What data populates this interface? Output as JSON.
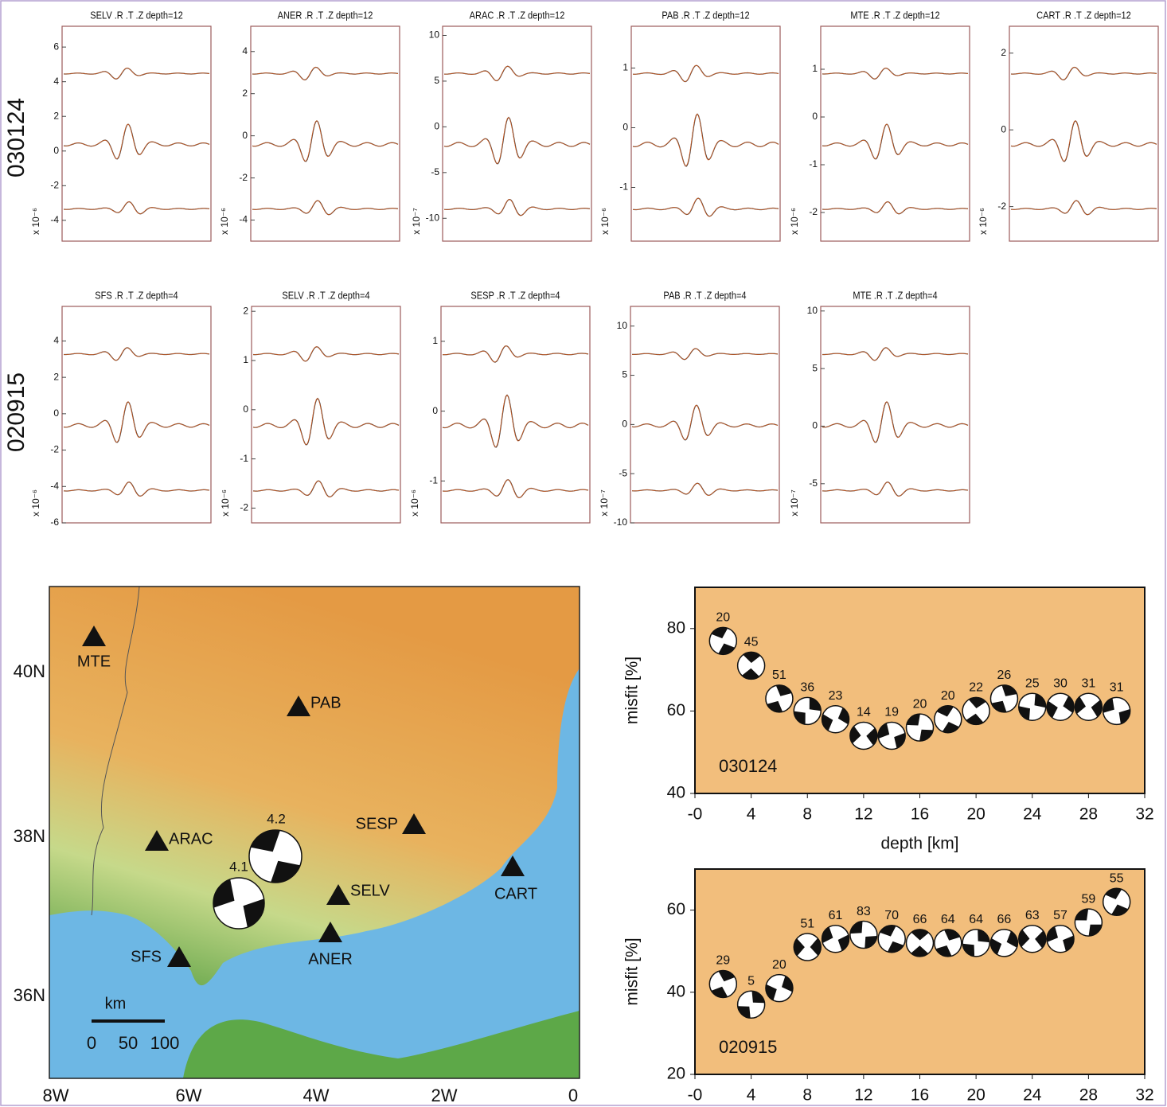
{
  "chart_data": [
    {
      "type": "scatter",
      "annotation": "030124",
      "xlabel": "depth [km]",
      "ylabel": "misfit [%]",
      "x": [
        2,
        4,
        6,
        8,
        10,
        12,
        14,
        16,
        18,
        20,
        22,
        24,
        26,
        28,
        30
      ],
      "values": [
        77,
        71,
        63,
        60,
        58,
        54,
        54,
        56,
        58,
        60,
        63,
        61,
        61,
        61,
        60
      ],
      "dc_labels": [
        20,
        45,
        51,
        36,
        23,
        14,
        19,
        20,
        20,
        22,
        26,
        25,
        30,
        31,
        31
      ],
      "xlim": [
        0,
        32
      ],
      "xticks": [
        {
          "value": 0,
          "label": "-0"
        },
        4,
        8,
        12,
        16,
        20,
        24,
        28,
        32
      ],
      "ylim": [
        40,
        90
      ],
      "yticks": [
        40,
        60,
        80
      ],
      "background": "#f2be7c"
    },
    {
      "type": "scatter",
      "annotation": "020915",
      "ylabel": "misfit [%]",
      "x": [
        2,
        4,
        6,
        8,
        10,
        12,
        14,
        16,
        18,
        20,
        22,
        24,
        26,
        28,
        30
      ],
      "values": [
        42,
        37,
        41,
        51,
        53,
        54,
        53,
        52,
        52,
        52,
        52,
        53,
        53,
        57,
        62
      ],
      "dc_labels": [
        29,
        5,
        20,
        51,
        61,
        83,
        70,
        66,
        64,
        64,
        66,
        63,
        57,
        59,
        55
      ],
      "xlim": [
        0,
        32
      ],
      "xticks": [
        {
          "value": 0,
          "label": "-0"
        },
        4,
        8,
        12,
        16,
        20,
        24,
        28,
        32
      ],
      "ylim": [
        20,
        70
      ],
      "yticks": [
        20,
        40,
        60
      ],
      "background": "#f2be7c"
    }
  ],
  "seismograms": [
    {
      "event": "030124",
      "panels": [
        {
          "title": "SELV .R .T .Z  depth=12",
          "ylim": [
            -5.2,
            7.2
          ],
          "yticks": [
            6,
            4,
            2,
            0,
            -2,
            -4
          ],
          "scale": "x 10⁻⁶"
        },
        {
          "title": "ANER .R .T .Z  depth=12",
          "ylim": [
            -5,
            5.2
          ],
          "yticks": [
            4,
            2,
            0,
            -2,
            -4
          ],
          "scale": "x 10⁻⁶"
        },
        {
          "title": "ARAC .R .T .Z  depth=12",
          "ylim": [
            -12.5,
            11
          ],
          "yticks": [
            10,
            5,
            0,
            -5,
            -10
          ],
          "scale": "x 10⁻⁷"
        },
        {
          "title": "PAB .R .T .Z  depth=12",
          "ylim": [
            -1.9,
            1.7
          ],
          "yticks": [
            1,
            0,
            -1
          ],
          "scale": "x 10⁻⁶"
        },
        {
          "title": "MTE .R .T .Z  depth=12",
          "ylim": [
            -2.6,
            1.9
          ],
          "yticks": [
            1,
            0,
            -1,
            -2
          ],
          "scale": "x 10⁻⁶"
        },
        {
          "title": "CART .R .T .Z  depth=12",
          "ylim": [
            -2.9,
            2.7
          ],
          "yticks": [
            2,
            0,
            -2
          ],
          "scale": "x 10⁻⁶"
        }
      ]
    },
    {
      "event": "020915",
      "panels": [
        {
          "title": "SFS .R .T .Z  depth=4",
          "ylim": [
            -6,
            5.9
          ],
          "yticks": [
            4,
            2,
            0,
            -2,
            -4,
            -6
          ],
          "scale": "x 10⁻⁶"
        },
        {
          "title": "SELV .R .T .Z  depth=4",
          "ylim": [
            -2.3,
            2.1
          ],
          "yticks": [
            2,
            1,
            0,
            -1,
            -2
          ],
          "scale": "x 10⁻⁶"
        },
        {
          "title": "SESP .R .T .Z  depth=4",
          "ylim": [
            -1.6,
            1.5
          ],
          "yticks": [
            1,
            0,
            -1
          ],
          "scale": "x 10⁻⁶"
        },
        {
          "title": "PAB .R .T .Z  depth=4",
          "ylim": [
            -10,
            12
          ],
          "yticks": [
            10,
            5,
            0,
            -5,
            -10
          ],
          "scale": "x 10⁻⁷"
        },
        {
          "title": "MTE .R .T .Z  depth=4",
          "ylim": [
            -8.4,
            10.4
          ],
          "yticks": [
            10,
            5,
            0,
            -5
          ],
          "scale": "x 10⁻⁷"
        }
      ]
    }
  ],
  "map": {
    "lon_ticks": [
      "8W",
      "6W",
      "4W",
      "2W",
      "0"
    ],
    "lat_ticks": [
      "40N",
      "38N",
      "36N"
    ],
    "stations": [
      "MTE",
      "PAB",
      "SESP",
      "ARAC",
      "SELV",
      "CART",
      "ANER",
      "SFS"
    ],
    "magnitudes": [
      "4.2",
      "4.1"
    ],
    "scale_title": "km",
    "scale_labels": [
      "0",
      "50",
      "100"
    ]
  }
}
